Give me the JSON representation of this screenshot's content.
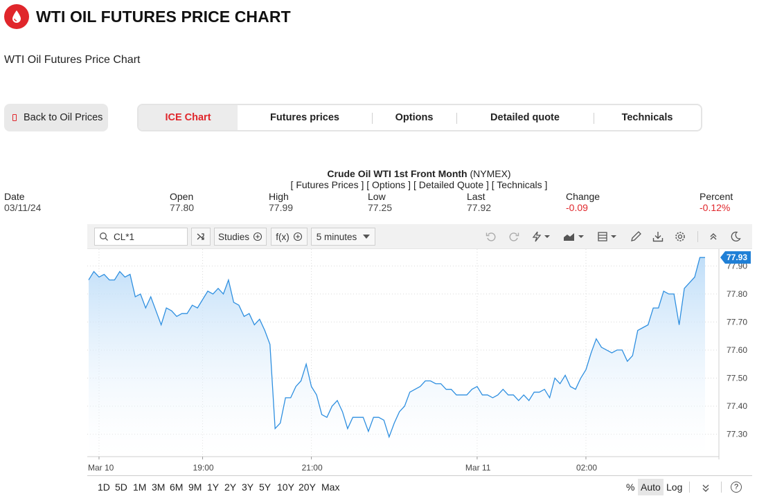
{
  "header": {
    "title": "WTI OIL FUTURES PRICE CHART",
    "subtitle": "WTI Oil Futures Price Chart",
    "logo_icon": "oil-drop-icon",
    "accent": "#e0262b"
  },
  "back_button": {
    "label": "Back to Oil Prices",
    "icon": "back-icon"
  },
  "tabs": [
    {
      "label": "ICE Chart",
      "active": true
    },
    {
      "label": "Futures prices",
      "active": false
    },
    {
      "label": "Options",
      "active": false
    },
    {
      "label": "Detailed quote",
      "active": false
    },
    {
      "label": "Technicals",
      "active": false
    }
  ],
  "quote": {
    "name": "Crude Oil WTI 1st Front Month",
    "exchange": "(NYMEX)",
    "links": "[ Futures Prices ] [ Options ] [ Detailed Quote ] [ Technicals ]",
    "date_label": "Date",
    "date": "03/11/24",
    "open_label": "Open",
    "open": "77.80",
    "high_label": "High",
    "high": "77.99",
    "low_label": "Low",
    "low": "77.25",
    "last_label": "Last",
    "last": "77.92",
    "change_label": "Change",
    "change": "-0.09",
    "percent_label": "Percent",
    "percent": "-0.12%"
  },
  "toolbar": {
    "symbol": "CL*1",
    "studies_label": "Studies",
    "fx_label": "f(x)",
    "interval_label": "5 minutes",
    "icons": [
      "search-icon",
      "shuffle-icon",
      "undo-icon",
      "redo-icon",
      "lightning-icon",
      "chart-style-icon",
      "layout-icon",
      "pencil-icon",
      "download-icon",
      "gear-icon",
      "collapse-icon",
      "moon-icon"
    ]
  },
  "ranges": [
    "1D",
    "5D",
    "1M",
    "3M",
    "6M",
    "9M",
    "1Y",
    "2Y",
    "3Y",
    "5Y",
    "10Y",
    "20Y",
    "Max"
  ],
  "scale_options": {
    "percent": "%",
    "auto": "Auto",
    "log": "Log",
    "help": "?"
  },
  "chart_data": {
    "type": "area",
    "symbol": "CL*1",
    "interval": "5 minutes",
    "x_labels": [
      "Mar 10",
      "19:00",
      "21:00",
      "Mar 11",
      "02:00"
    ],
    "y_ticks": [
      77.3,
      77.4,
      77.5,
      77.6,
      77.7,
      77.8,
      77.9
    ],
    "ylim": [
      77.22,
      77.96
    ],
    "last_value": "77.93",
    "grid": true,
    "line_color": "#2e8fe0",
    "series": [
      {
        "values": [
          77.85,
          77.88,
          77.86,
          77.87,
          77.85,
          77.85,
          77.88,
          77.86,
          77.87,
          77.79,
          77.8,
          77.75,
          77.79,
          77.74,
          77.69,
          77.75,
          77.74,
          77.72,
          77.73,
          77.73,
          77.76,
          77.75,
          77.78,
          77.81,
          77.8,
          77.82,
          77.8,
          77.85,
          77.77,
          77.76,
          77.72,
          77.73,
          77.69,
          77.71,
          77.67,
          77.62,
          77.32,
          77.34,
          77.43,
          77.43,
          77.47,
          77.49,
          77.55,
          77.47,
          77.44,
          77.37,
          77.36,
          77.4,
          77.42,
          77.38,
          77.32,
          77.36,
          77.36,
          77.36,
          77.31,
          77.36,
          77.36,
          77.35,
          77.29,
          77.34,
          77.38,
          77.4,
          77.45,
          77.46,
          77.47,
          77.49,
          77.49,
          77.48,
          77.48,
          77.46,
          77.46,
          77.44,
          77.44,
          77.44,
          77.46,
          77.47,
          77.44,
          77.44,
          77.43,
          77.44,
          77.46,
          77.44,
          77.44,
          77.42,
          77.44,
          77.42,
          77.45,
          77.45,
          77.46,
          77.43,
          77.5,
          77.48,
          77.51,
          77.47,
          77.46,
          77.5,
          77.53,
          77.59,
          77.64,
          77.61,
          77.6,
          77.59,
          77.6,
          77.6,
          77.56,
          77.58,
          77.67,
          77.68,
          77.69,
          77.75,
          77.75,
          77.81,
          77.8,
          77.8,
          77.69,
          77.82,
          77.84,
          77.86,
          77.93,
          77.93
        ]
      }
    ]
  }
}
